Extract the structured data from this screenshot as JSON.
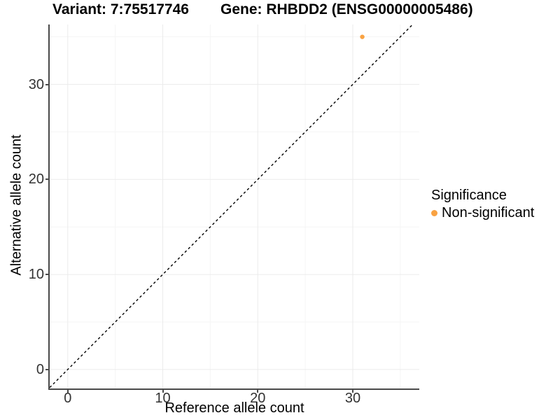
{
  "titles": {
    "variant": "Variant: 7:75517746",
    "gene": "Gene: RHBDD2 (ENSG00000005486)"
  },
  "chart_data": {
    "type": "scatter",
    "title_left": "Variant: 7:75517746",
    "title_right": "Gene: RHBDD2 (ENSG00000005486)",
    "xlabel": "Reference allele count",
    "ylabel": "Alternative allele count",
    "points": [
      {
        "x": 31,
        "y": 35,
        "series": "Non-significant"
      }
    ],
    "identity_line": {
      "type": "y=x",
      "style": "dashed",
      "color": "#000000"
    },
    "x_major_ticks": [
      0,
      10,
      20,
      30
    ],
    "x_minor_ticks": [
      5,
      15,
      25,
      35
    ],
    "y_major_ticks": [
      0,
      10,
      20,
      30
    ],
    "y_minor_ticks": [
      5,
      15,
      25,
      35
    ],
    "xlim": [
      -1.9,
      37.0
    ],
    "ylim": [
      -2.0,
      36.3
    ],
    "grid": "on",
    "legend": {
      "position": "right",
      "title": "Significance",
      "items": [
        {
          "label": "Non-significant",
          "color": "#F9A242"
        }
      ]
    },
    "colors": {
      "point": "#F9A242",
      "grid_major": "#EBEBEB",
      "grid_minor": "#F5F5F5",
      "axis_line": "#4a4a4a",
      "tick_text": "#333333"
    }
  }
}
